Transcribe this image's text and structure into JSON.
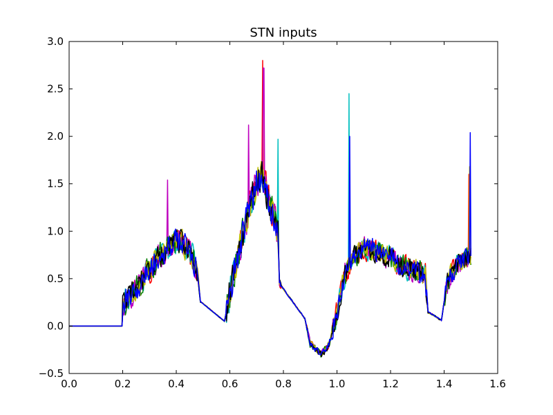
{
  "chart_data": {
    "type": "line",
    "title": "STN inputs",
    "xlabel": "",
    "ylabel": "",
    "xlim": [
      0.0,
      1.6
    ],
    "ylim": [
      -0.5,
      3.0
    ],
    "xticks": [
      "0.0",
      "0.2",
      "0.4",
      "0.6",
      "0.8",
      "1.0",
      "1.2",
      "1.4",
      "1.6"
    ],
    "yticks": [
      "−0.5",
      "0.0",
      "0.5",
      "1.0",
      "1.5",
      "2.0",
      "2.5",
      "3.0"
    ],
    "grid": false,
    "legend": "none",
    "x_end": 1.5,
    "envelope": [
      [
        0.0,
        0.0
      ],
      [
        0.198,
        0.0
      ],
      [
        0.2,
        0.22
      ],
      [
        0.25,
        0.38
      ],
      [
        0.3,
        0.6
      ],
      [
        0.35,
        0.78
      ],
      [
        0.4,
        0.9
      ],
      [
        0.45,
        0.82
      ],
      [
        0.48,
        0.55
      ],
      [
        0.49,
        0.26
      ],
      [
        0.58,
        0.05
      ],
      [
        0.59,
        0.2
      ],
      [
        0.62,
        0.6
      ],
      [
        0.66,
        1.1
      ],
      [
        0.7,
        1.5
      ],
      [
        0.72,
        1.6
      ],
      [
        0.75,
        1.3
      ],
      [
        0.77,
        1.1
      ],
      [
        0.78,
        0.95
      ],
      [
        0.785,
        0.45
      ],
      [
        0.88,
        0.08
      ],
      [
        0.9,
        -0.18
      ],
      [
        0.94,
        -0.3
      ],
      [
        0.97,
        -0.2
      ],
      [
        1.0,
        0.15
      ],
      [
        1.03,
        0.55
      ],
      [
        1.06,
        0.72
      ],
      [
        1.1,
        0.82
      ],
      [
        1.15,
        0.8
      ],
      [
        1.2,
        0.72
      ],
      [
        1.25,
        0.62
      ],
      [
        1.3,
        0.58
      ],
      [
        1.33,
        0.55
      ],
      [
        1.34,
        0.15
      ],
      [
        1.39,
        0.06
      ],
      [
        1.41,
        0.45
      ],
      [
        1.45,
        0.65
      ],
      [
        1.5,
        0.75
      ]
    ],
    "spikes": [
      {
        "x": 0.368,
        "y": 1.54,
        "series": 2
      },
      {
        "x": 0.67,
        "y": 2.12,
        "series": 2
      },
      {
        "x": 0.723,
        "y": 2.8,
        "series": 0
      },
      {
        "x": 0.726,
        "y": 2.72,
        "series": 2
      },
      {
        "x": 0.78,
        "y": 1.97,
        "series": 1
      },
      {
        "x": 1.045,
        "y": 2.45,
        "series": 1
      },
      {
        "x": 1.047,
        "y": 2.0,
        "series": 6
      },
      {
        "x": 1.497,
        "y": 2.04,
        "series": 6
      },
      {
        "x": 1.495,
        "y": 1.68,
        "series": 4
      },
      {
        "x": 1.492,
        "y": 1.6,
        "series": 0
      }
    ],
    "series": [
      {
        "color": "#ff0000",
        "seed": 11
      },
      {
        "color": "#00bfbf",
        "seed": 23
      },
      {
        "color": "#bf00bf",
        "seed": 37
      },
      {
        "color": "#008000",
        "seed": 41
      },
      {
        "color": "#bfbf00",
        "seed": 53
      },
      {
        "color": "#000000",
        "seed": 67
      },
      {
        "color": "#0000ff",
        "seed": 79
      }
    ]
  }
}
